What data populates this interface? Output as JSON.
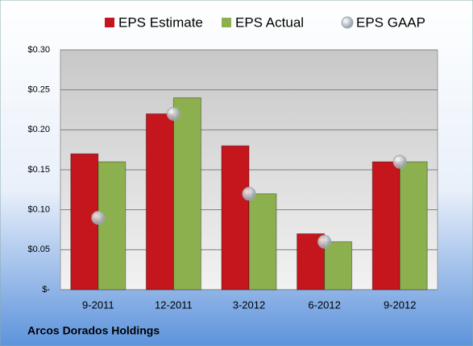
{
  "chart_data": {
    "type": "bar",
    "title": "Arcos Dorados Holdings",
    "categories": [
      "9-2011",
      "12-2011",
      "3-2012",
      "6-2012",
      "9-2012"
    ],
    "series": [
      {
        "name": "EPS Estimate",
        "color": "#c4161c",
        "type": "bar",
        "values": [
          0.17,
          0.22,
          0.18,
          0.07,
          0.16
        ]
      },
      {
        "name": "EPS Actual",
        "color": "#8db04e",
        "type": "bar",
        "values": [
          0.16,
          0.24,
          0.12,
          0.06,
          0.16
        ]
      },
      {
        "name": "EPS GAAP",
        "color": "#b9bdc9",
        "type": "scatter",
        "values": [
          0.09,
          0.22,
          0.12,
          0.06,
          0.16
        ]
      }
    ],
    "ylim": [
      0,
      0.3
    ],
    "yticks": [
      {
        "value": 0,
        "label": "$-"
      },
      {
        "value": 0.05,
        "label": "$0.05"
      },
      {
        "value": 0.1,
        "label": "$0.10"
      },
      {
        "value": 0.15,
        "label": "$0.15"
      },
      {
        "value": 0.2,
        "label": "$0.20"
      },
      {
        "value": 0.25,
        "label": "$0.25"
      },
      {
        "value": 0.3,
        "label": "$0.30"
      }
    ],
    "grid": true,
    "legend": "top"
  }
}
